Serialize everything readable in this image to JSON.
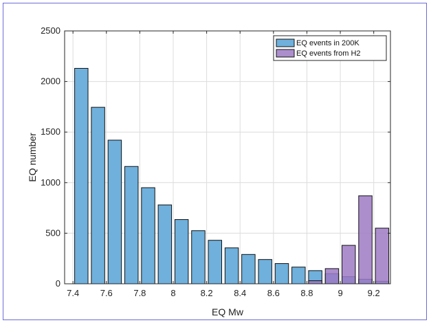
{
  "chart_data": {
    "type": "bar",
    "xlabel": "EQ Mw",
    "ylabel": "EQ number",
    "xlim": [
      7.35,
      9.3
    ],
    "ylim": [
      0,
      2500
    ],
    "grid": true,
    "legend_position": "top-right",
    "x_ticks": [
      "7.4",
      "7.6",
      "7.8",
      "8",
      "8.2",
      "8.4",
      "8.6",
      "8.8",
      "9",
      "9.2"
    ],
    "y_ticks": [
      "0",
      "500",
      "1000",
      "1500",
      "2000",
      "2500"
    ],
    "bin_width": 0.1,
    "series": [
      {
        "name": "EQ events in 200K",
        "color": "#6fb0dc",
        "x": [
          7.45,
          7.55,
          7.65,
          7.75,
          7.85,
          7.95,
          8.05,
          8.15,
          8.25,
          8.35,
          8.45,
          8.55,
          8.65,
          8.75,
          8.85,
          8.95,
          9.05,
          9.15,
          9.25
        ],
        "values": [
          2130,
          1745,
          1420,
          1160,
          950,
          780,
          635,
          525,
          430,
          355,
          290,
          240,
          200,
          165,
          130,
          100,
          70,
          45,
          25
        ]
      },
      {
        "name": "EQ events from H2",
        "color": "#9e7ac4",
        "x": [
          8.85,
          8.95,
          9.05,
          9.15,
          9.25
        ],
        "values": [
          30,
          150,
          380,
          870,
          550
        ]
      }
    ]
  }
}
